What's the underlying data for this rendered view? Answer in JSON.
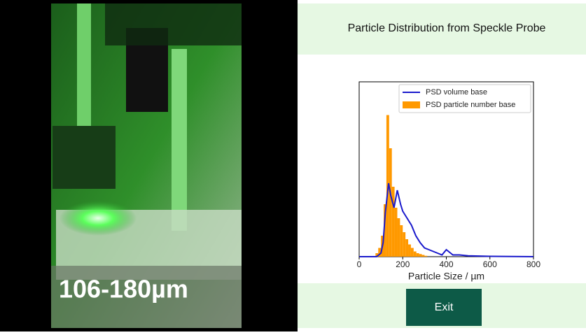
{
  "video": {
    "caption": "106-180µm"
  },
  "panel": {
    "title": "Particle Distribution from Speckle Probe",
    "button": "Exit"
  },
  "chart_data": {
    "type": "histogram",
    "xlabel": "Particle Size / µm",
    "xlim": [
      0,
      800
    ],
    "xticks": [
      0,
      200,
      400,
      600,
      800
    ],
    "ylim": [
      0,
      100
    ],
    "legend": "upper right",
    "series": [
      {
        "name": "PSD volume base",
        "color": "#1a1acc",
        "type": "line",
        "x": [
          0,
          80,
          100,
          110,
          120,
          135,
          145,
          160,
          175,
          190,
          200,
          220,
          240,
          260,
          280,
          300,
          320,
          340,
          360,
          380,
          400,
          410,
          430,
          460,
          500,
          600,
          800
        ],
        "values": [
          0,
          0,
          2,
          8,
          25,
          42,
          35,
          28,
          38,
          30,
          26,
          22,
          18,
          12,
          8,
          5,
          4,
          3,
          2,
          1,
          4,
          3,
          1,
          1,
          0.5,
          0.2,
          0
        ]
      },
      {
        "name": "PSD particle number base",
        "color": "#ff9900",
        "type": "histogram",
        "bins": [
          75,
          87.5,
          100,
          112.5,
          125,
          137.5,
          150,
          162.5,
          175,
          187.5,
          200,
          212.5,
          225,
          237.5,
          250,
          262.5,
          275,
          287.5,
          300,
          312.5
        ],
        "counts": [
          2,
          5,
          12,
          30,
          81,
          62,
          40,
          28,
          22,
          18,
          14,
          10,
          7,
          5,
          3,
          2,
          1.5,
          1,
          0.5
        ]
      }
    ]
  }
}
